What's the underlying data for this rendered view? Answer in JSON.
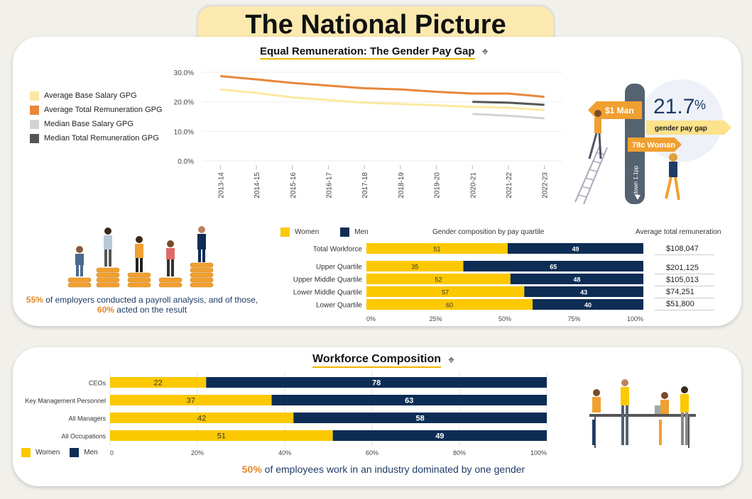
{
  "page_title": "The National Picture",
  "pay_gap_section": {
    "title": "Equal Remuneration: The Gender Pay Gap",
    "legend": [
      {
        "label": "Average Base Salary GPG",
        "color": "#fce8a0"
      },
      {
        "label": "Average Total Remuneration GPG",
        "color": "#e8873a"
      },
      {
        "label": "Median Base Salary GPG",
        "color": "#d3d3d3"
      },
      {
        "label": "Median Total Remuneration GPG",
        "color": "#555555"
      }
    ],
    "headline": {
      "value": "21.7",
      "unit": "%",
      "label": "gender pay gap",
      "man_sign": "$1 Man",
      "woman_sign": "78c Woman",
      "trend": "down 1.1pp"
    }
  },
  "quartile_section": {
    "employers_caption_pre": "55%",
    "employers_caption_mid": " of employers conducted a payroll analysis, and of those,",
    "employers_caption_pct2": "60%",
    "employers_caption_post": " acted on the result",
    "legend_women": "Women",
    "legend_men": "Men",
    "chart_title": "Gender composition by pay quartile",
    "remuneration_header": "Average total remuneration",
    "remuneration": [
      "$108,047",
      "$201,125",
      "$105,013",
      "$74,251",
      "$51,800"
    ]
  },
  "workforce_section": {
    "title": "Workforce Composition",
    "legend_women": "Women",
    "legend_men": "Men",
    "caption_pct": "50%",
    "caption_text": " of employees work in an industry dominated by one gender"
  },
  "colors": {
    "women": "#fcc800",
    "men": "#0d2d55",
    "accent": "#f0b400"
  },
  "chart_data": [
    {
      "type": "line",
      "x": [
        "2013-14",
        "2014-15",
        "2015-16",
        "2016-17",
        "2017-18",
        "2018-19",
        "2019-20",
        "2020-21",
        "2021-22",
        "2022-23"
      ],
      "ylim": [
        0,
        30
      ],
      "yticks": [
        "0.0%",
        "10.0%",
        "20.0%",
        "30.0%"
      ],
      "series": [
        {
          "name": "Average Base Salary GPG",
          "color": "#fce8a0",
          "values": [
            24.2,
            23.0,
            21.5,
            20.6,
            19.7,
            19.3,
            18.8,
            18.3,
            18.0,
            17.2
          ]
        },
        {
          "name": "Average Total Remuneration GPG",
          "color": "#e8873a",
          "values": [
            28.7,
            27.6,
            26.4,
            25.5,
            24.6,
            24.2,
            23.4,
            22.8,
            22.8,
            21.7
          ]
        },
        {
          "name": "Median Base Salary GPG",
          "color": "#d3d3d3",
          "values": [
            null,
            null,
            null,
            null,
            null,
            null,
            null,
            15.9,
            15.3,
            14.4
          ]
        },
        {
          "name": "Median Total Remuneration GPG",
          "color": "#555555",
          "values": [
            null,
            null,
            null,
            null,
            null,
            null,
            null,
            20.0,
            19.7,
            19.0
          ]
        }
      ]
    },
    {
      "type": "bar",
      "orientation": "horizontal-stacked",
      "title": "Gender composition by pay quartile",
      "categories": [
        "Total Workforce",
        "Upper Quartile",
        "Upper Middle Quartile",
        "Lower Middle Quartile",
        "Lower Quartile"
      ],
      "series": [
        {
          "name": "Women",
          "values": [
            51,
            35,
            52,
            57,
            60
          ]
        },
        {
          "name": "Men",
          "values": [
            49,
            65,
            48,
            43,
            40
          ]
        }
      ],
      "xticks": [
        "0%",
        "25%",
        "50%",
        "75%",
        "100%"
      ]
    },
    {
      "type": "bar",
      "orientation": "horizontal-stacked",
      "categories": [
        "CEOs",
        "Key Management Personnel",
        "All Managers",
        "All Occupations"
      ],
      "series": [
        {
          "name": "Women",
          "values": [
            22,
            37,
            42,
            51
          ]
        },
        {
          "name": "Men",
          "values": [
            78,
            63,
            58,
            49
          ]
        }
      ],
      "xticks": [
        "0",
        "20%",
        "40%",
        "60%",
        "80%",
        "100%"
      ]
    }
  ]
}
